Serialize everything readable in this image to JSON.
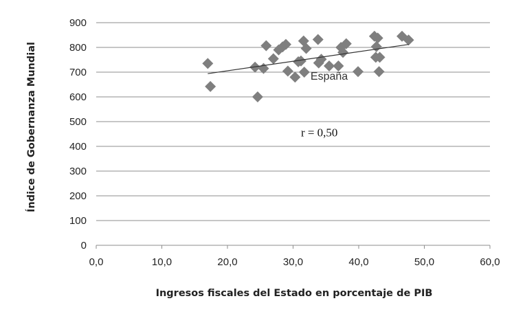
{
  "chart_data": {
    "type": "scatter",
    "title": "",
    "xlabel": "Ingresos fiscales del Estado en porcentaje de PIB",
    "ylabel": "Índice de Gobernanza Mundial",
    "xlim": [
      0,
      60
    ],
    "ylim": [
      0,
      900
    ],
    "xticks": [
      "0,0",
      "10,0",
      "20,0",
      "30,0",
      "40,0",
      "50,0",
      "60,0"
    ],
    "yticks": [
      "0",
      "100",
      "200",
      "300",
      "400",
      "500",
      "600",
      "700",
      "800",
      "900"
    ],
    "grid": "horizontal",
    "legend": "none",
    "marker": "diamond",
    "marker_color": "#7f7f7f",
    "trendline_color": "#333333",
    "points": [
      {
        "x": 17.0,
        "y": 735
      },
      {
        "x": 17.4,
        "y": 642
      },
      {
        "x": 24.2,
        "y": 720
      },
      {
        "x": 24.6,
        "y": 600
      },
      {
        "x": 25.5,
        "y": 715
      },
      {
        "x": 25.9,
        "y": 807
      },
      {
        "x": 27.0,
        "y": 754
      },
      {
        "x": 27.8,
        "y": 790
      },
      {
        "x": 28.4,
        "y": 802
      },
      {
        "x": 28.9,
        "y": 812
      },
      {
        "x": 29.2,
        "y": 704
      },
      {
        "x": 30.3,
        "y": 680
      },
      {
        "x": 30.8,
        "y": 742
      },
      {
        "x": 31.2,
        "y": 745
      },
      {
        "x": 31.6,
        "y": 826
      },
      {
        "x": 31.7,
        "y": 700
      },
      {
        "x": 32.0,
        "y": 796
      },
      {
        "x": 33.8,
        "y": 832
      },
      {
        "x": 33.9,
        "y": 737
      },
      {
        "x": 34.3,
        "y": 752
      },
      {
        "x": 35.5,
        "y": 725
      },
      {
        "x": 36.9,
        "y": 725
      },
      {
        "x": 37.3,
        "y": 800
      },
      {
        "x": 37.6,
        "y": 780
      },
      {
        "x": 38.1,
        "y": 815
      },
      {
        "x": 39.9,
        "y": 702
      },
      {
        "x": 42.4,
        "y": 845
      },
      {
        "x": 42.6,
        "y": 760
      },
      {
        "x": 42.7,
        "y": 803
      },
      {
        "x": 42.9,
        "y": 838
      },
      {
        "x": 43.1,
        "y": 702
      },
      {
        "x": 43.2,
        "y": 760
      },
      {
        "x": 46.6,
        "y": 845
      },
      {
        "x": 47.6,
        "y": 830
      }
    ],
    "trendline": {
      "x": [
        17.0,
        47.6
      ],
      "y": [
        694,
        812
      ]
    },
    "annotations": [
      {
        "text": "España",
        "x": 35.5,
        "y": 670,
        "kind": "country"
      },
      {
        "text": "r = 0,50",
        "x": 34.0,
        "y": 440,
        "kind": "r"
      }
    ]
  }
}
